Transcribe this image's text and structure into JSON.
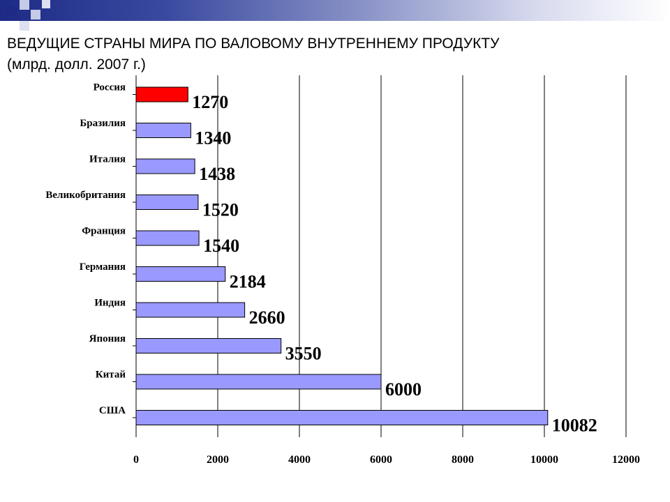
{
  "colors": {
    "header_band": "#1d2b86",
    "bar_default": "#9999ff",
    "bar_highlight": "#ff0000",
    "deco_dark": "#1d2b86",
    "deco_light": "#b9bfe0"
  },
  "title": {
    "line1": "ВЕДУЩИЕ СТРАНЫ МИРА ПО ВАЛОВОМУ ВНУТРЕННЕМУ ПРОДУКТУ",
    "line2": "(млрд. долл. 2007 г.)"
  },
  "chart_data": {
    "type": "bar",
    "orientation": "horizontal",
    "categories": [
      "Россия",
      "Бразилия",
      "Италия",
      "Великобритания",
      "Франция",
      "Германия",
      "Индия",
      "Япония",
      "Китай",
      "США"
    ],
    "values": [
      1270,
      1340,
      1438,
      1520,
      1540,
      2184,
      2660,
      3550,
      6000,
      10082
    ],
    "data_labels": [
      "1270",
      "1340",
      "1438",
      "1520",
      "1540",
      "2184",
      "2660",
      "3550",
      "6000",
      "10082"
    ],
    "highlight_category": "Россия",
    "xlim": [
      0,
      12000
    ],
    "x_ticks": [
      0,
      2000,
      4000,
      6000,
      8000,
      10000,
      12000
    ],
    "x_tick_labels": [
      "0",
      "2000",
      "4000",
      "6000",
      "8000",
      "10000",
      "12000"
    ],
    "grid": "vertical",
    "legend": "none"
  }
}
